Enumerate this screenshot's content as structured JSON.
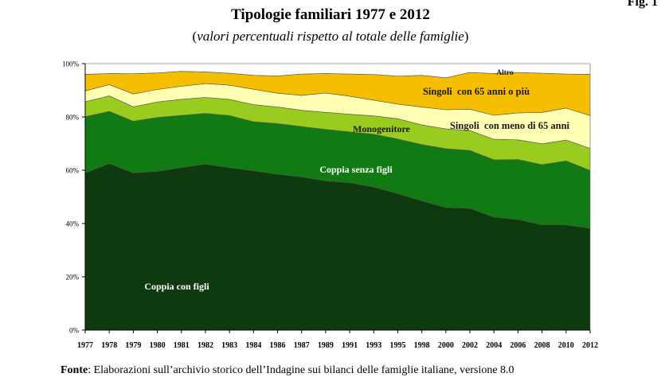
{
  "figure": {
    "label": "Fig. 1"
  },
  "title": "Tipologie familiari 1977 e 2012",
  "subtitle": "valori percentuali rispetto al totale delle famiglie",
  "source": {
    "label": "Fonte",
    "text": ": Elaborazioni sull’archivio storico dell’Indagine sui bilanci delle famiglie italiane, versione 8.0"
  },
  "chart_data": {
    "type": "area",
    "stacked": true,
    "x": [
      "1977",
      "1978",
      "1979",
      "1980",
      "1981",
      "1982",
      "1983",
      "1984",
      "1986",
      "1987",
      "1989",
      "1991",
      "1993",
      "1995",
      "1998",
      "2000",
      "2002",
      "2004",
      "2006",
      "2008",
      "2010",
      "2012"
    ],
    "y_ticks": [
      "0%",
      "20%",
      "40%",
      "60%",
      "80%",
      "100%"
    ],
    "ylim": [
      0,
      100
    ],
    "series": [
      {
        "name": "Coppia con figli",
        "color": "#0f3a0f",
        "values": [
          59,
          62.5,
          59,
          59.6,
          61,
          62.3,
          61,
          59.8,
          58.5,
          57.5,
          56,
          55.3,
          53.7,
          51.2,
          48.5,
          46,
          45.7,
          42.4,
          41.5,
          39.5,
          39.5,
          38.2
        ]
      },
      {
        "name": "Coppia senza figli",
        "color": "#127a12",
        "values": [
          21.1,
          19.6,
          19.4,
          20.2,
          19.6,
          19,
          19.5,
          18.4,
          19,
          18.9,
          19.3,
          19.1,
          19.8,
          20.5,
          21.1,
          22.1,
          21.7,
          21.5,
          22.5,
          22.6,
          24,
          21.7
        ]
      },
      {
        "name": "Monogenitore",
        "color": "#99cc1f",
        "values": [
          5.6,
          5.8,
          5.4,
          5.8,
          6,
          6,
          6.1,
          6.4,
          6.2,
          6.1,
          6.4,
          6.6,
          6.9,
          7.6,
          7.4,
          7.4,
          7.5,
          7.7,
          7.4,
          7.8,
          7.8,
          8.3
        ]
      },
      {
        "name": "Singoli  con meno di 65 anni",
        "color": "#ffffb3",
        "values": [
          4.1,
          4.2,
          4.8,
          4.7,
          4.9,
          5.2,
          5.3,
          5.8,
          5.2,
          5.6,
          7.3,
          6.8,
          5.9,
          5.5,
          6.7,
          7.2,
          8,
          9,
          10.1,
          11.8,
          12,
          12.3
        ]
      },
      {
        "name": "Singoli  con 65 anni o più",
        "color": "#f5bf00",
        "values": [
          6.2,
          4.2,
          7.6,
          6.2,
          5.6,
          4.4,
          4.5,
          5.2,
          6.5,
          8,
          7.3,
          8.3,
          9.6,
          10.5,
          11.9,
          12,
          13.8,
          15.7,
          15.2,
          14.7,
          12.8,
          15.5
        ]
      },
      {
        "name": "Altro",
        "color": "#ffffff",
        "values": [
          4,
          3.7,
          3.8,
          3.5,
          2.9,
          3.1,
          3.6,
          4.4,
          4.6,
          3.9,
          3.7,
          3.9,
          4.1,
          4.7,
          4.4,
          5.3,
          3.3,
          3.7,
          3.3,
          3.6,
          3.9,
          4
        ]
      }
    ]
  }
}
